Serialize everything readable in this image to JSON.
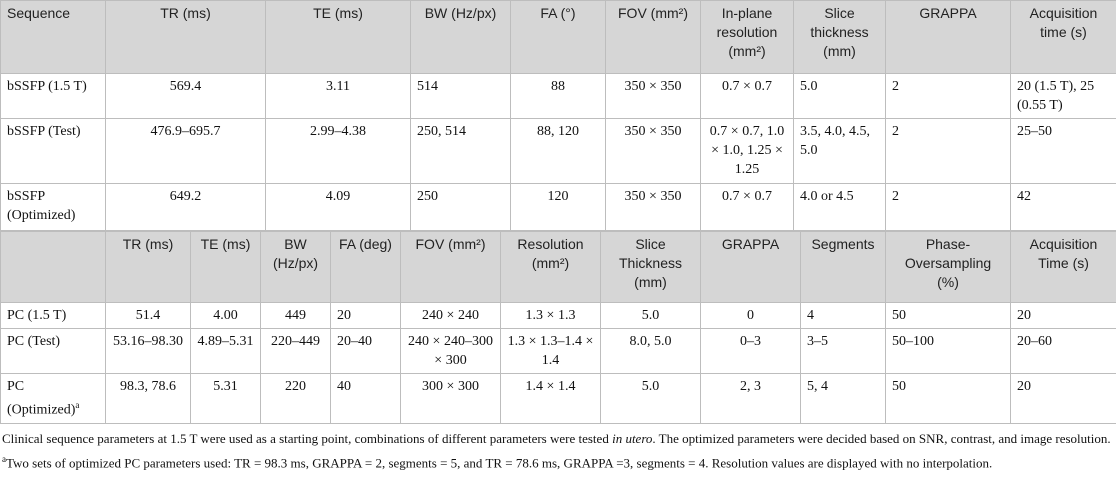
{
  "table1": {
    "header": [
      "Sequence",
      "TR (ms)",
      "TE (ms)",
      "BW (Hz/px)",
      "FA (°)",
      "FOV (mm²)",
      "In-plane resolution (mm²)",
      "Slice thickness (mm)",
      "GRAPPA",
      "Acquisition time (s)"
    ],
    "rows": [
      [
        "bSSFP (1.5 T)",
        "569.4",
        "3.11",
        "514",
        "88",
        "350 × 350",
        "0.7 × 0.7",
        "5.0",
        "2",
        "20 (1.5 T), 25 (0.55 T)"
      ],
      [
        " bSSFP (Test)",
        "476.9–695.7",
        "2.99–4.38",
        "250, 514",
        "88, 120",
        "350 × 350",
        "0.7 × 0.7, 1.0 × 1.0, 1.25 × 1.25",
        "3.5, 4.0, 4.5, 5.0",
        "2",
        "25–50"
      ],
      [
        "bSSFP (Optimized)",
        "649.2",
        "4.09",
        "250",
        "120",
        "350 × 350",
        "0.7 × 0.7",
        "4.0 or 4.5",
        "2",
        "42"
      ]
    ]
  },
  "table2": {
    "header": [
      null,
      "TR (ms)",
      "TE (ms)",
      "BW (Hz/px)",
      "FA (deg)",
      "FOV (mm²)",
      "Resolution (mm²)",
      "Slice Thickness (mm)",
      "GRAPPA",
      "Segments",
      "Phase-Oversampling (%)",
      "Acquisition Time (s)"
    ],
    "rows": [
      [
        "PC (1.5 T)",
        "51.4",
        "4.00",
        "449",
        "20",
        "240 × 240",
        "1.3 × 1.3",
        "5.0",
        "0",
        "4",
        "50",
        "20"
      ],
      [
        "PC (Test)",
        "53.16–98.30",
        "4.89–5.31",
        "220–449",
        "20–40",
        "240 × 240–300 × 300",
        "1.3 × 1.3–1.4 × 1.4",
        "8.0, 5.0",
        "0–3",
        "3–5",
        "50–100",
        "20–60"
      ],
      [
        {
          "text": "PC (Optimized)",
          "sup": "a"
        },
        "98.3, 78.6",
        "5.31",
        "220",
        "40",
        "300 × 300",
        "1.4 × 1.4",
        "5.0",
        "2, 3",
        "5, 4",
        "50",
        "20"
      ]
    ]
  },
  "notes": [
    [
      "Clinical sequence parameters at 1.5 T were used as a starting point, combinations of different parameters were tested ",
      "in utero",
      ". The optimized parameters were decided based on SNR, contrast, and image resolution."
    ],
    {
      "sup": "a",
      "text": "Two sets of optimized PC parameters used: TR = 98.3 ms, GRAPPA = 2, segments = 5, and TR = 78.6 ms, GRAPPA =3, segments = 4. Resolution values are displayed with no interpolation."
    }
  ]
}
